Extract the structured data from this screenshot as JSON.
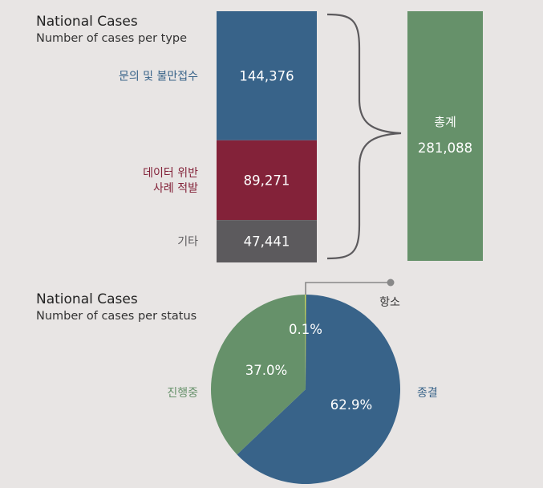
{
  "chart_data": [
    {
      "type": "bar",
      "subtype": "stacked",
      "title": "National Cases",
      "subtitle": "Number of cases per type",
      "segments": [
        {
          "label": "문의 및 불만접수",
          "value": 144376,
          "value_label": "144,376",
          "color": "#386389"
        },
        {
          "label": "데이터 위반\n사례 적발",
          "value": 89271,
          "value_label": "89,271",
          "color": "#832239"
        },
        {
          "label": "기타",
          "value": 47441,
          "value_label": "47,441",
          "color": "#5c5a5d"
        }
      ],
      "total": {
        "label": "총계",
        "value": 281088,
        "value_label": "281,088",
        "color": "#66916a"
      }
    },
    {
      "type": "pie",
      "title": "National Cases",
      "subtitle": "Number of cases per status",
      "slices": [
        {
          "label": "종결",
          "value": 62.9,
          "value_label": "62.9%",
          "color": "#386389"
        },
        {
          "label": "진행중",
          "value": 37.0,
          "value_label": "37.0%",
          "color": "#66916a"
        },
        {
          "label": "항소",
          "value": 0.1,
          "value_label": "0.1%",
          "color": "#d8e04a"
        }
      ]
    }
  ],
  "colors": {
    "background": "#e8e5e4",
    "brace": "#5c5a5d",
    "callout": "#888888"
  }
}
